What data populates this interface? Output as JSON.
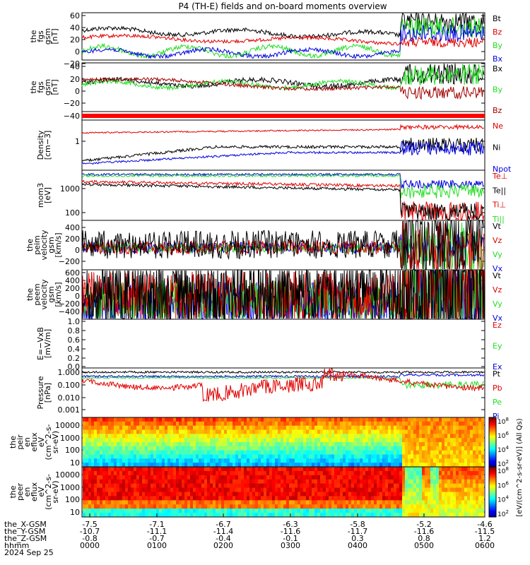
{
  "title": "P4 (TH-E) fields and on-board moments overview",
  "colors": {
    "black": "#000000",
    "red": "#e00000",
    "green": "#22dd22",
    "blue": "#0000e0",
    "darkred": "#a00000",
    "brightred": "#ff0000"
  },
  "footer": {
    "rows": [
      {
        "label": "the_X-GSM",
        "values": [
          "-7.5",
          "-7.1",
          "-6.7",
          "-6.3",
          "-5.8",
          "-5.2",
          "-4.6"
        ]
      },
      {
        "label": "the_Y-GSM",
        "values": [
          "-10.7",
          "-11.1",
          "-11.4",
          "-11.6",
          "-11.7",
          "-11.6",
          "-11.5"
        ]
      },
      {
        "label": "the_Z-GSM",
        "values": [
          "-0.8",
          "-0.7",
          "-0.4",
          "-0.1",
          "0.3",
          "0.8",
          "1.2"
        ]
      },
      {
        "label": "hhmm",
        "values": [
          "0000",
          "0100",
          "0200",
          "0300",
          "0400",
          "0500",
          "0600"
        ]
      }
    ],
    "date": "2024 Sep 25"
  },
  "colorbar": {
    "label1": "[eV/(cm^2-s-sr-eV)] (All Qs)",
    "label2": "[eV/(cm^2-s-sr-eV)] (All Qs)",
    "ticks1": [
      "10^8",
      "10^6",
      "10^4",
      "10^2"
    ],
    "ticks2": [
      "10^8",
      "10^6",
      "10^4",
      "10^2"
    ]
  },
  "chart_data": [
    {
      "type": "line",
      "ylabel": [
        "the",
        "fgs",
        "gsm",
        "[nT]"
      ],
      "ylim": [
        -20,
        60
      ],
      "yticks": [
        "60",
        "40",
        "20",
        "0",
        "−20"
      ],
      "legend": [
        {
          "name": "Bt",
          "color": "black"
        },
        {
          "name": "Bz",
          "color": "red"
        },
        {
          "name": "By",
          "color": "green"
        },
        {
          "name": "Bx",
          "color": "blue"
        }
      ]
    },
    {
      "type": "line",
      "ylabel": [
        "the",
        "fgs",
        "gsm",
        "[nT]"
      ],
      "ylim": [
        -50,
        40
      ],
      "yticks": [
        "40",
        "20",
        "0",
        "−20",
        "−40"
      ],
      "legend": [
        {
          "name": "Bx",
          "color": "black"
        },
        {
          "name": "By",
          "color": "green"
        },
        {
          "name": "Bz",
          "color": "darkred"
        }
      ]
    },
    {
      "type": "bar",
      "ylabel": [],
      "ylim": [
        0,
        1
      ],
      "yticks": [],
      "legend": []
    },
    {
      "type": "line",
      "ylabel": [
        "Density",
        "[cm−3]"
      ],
      "ylim": [
        0.1,
        5
      ],
      "yticks": [
        "1"
      ],
      "legend": [
        {
          "name": "Ne",
          "color": "red"
        },
        {
          "name": "Ni",
          "color": "black"
        },
        {
          "name": "Npot",
          "color": "blue"
        }
      ]
    },
    {
      "type": "line",
      "ylabel": [
        "mom3",
        "[eV]"
      ],
      "ylim": [
        80,
        8000
      ],
      "yticks": [
        "1000",
        "100"
      ],
      "legend": [
        {
          "name": "Te⊥",
          "color": "red"
        },
        {
          "name": "Te||",
          "color": "black"
        },
        {
          "name": "Ti⊥",
          "color": "red"
        },
        {
          "name": "Ti||",
          "color": "green"
        }
      ]
    },
    {
      "type": "line",
      "ylabel": [
        "the",
        "peim",
        "velocity",
        "gsm",
        "[km/s]"
      ],
      "ylim": [
        -400,
        500
      ],
      "yticks": [
        "400",
        "200",
        "0",
        "−200"
      ],
      "legend": [
        {
          "name": "Vt",
          "color": "black"
        },
        {
          "name": "Vz",
          "color": "red"
        },
        {
          "name": "Vy",
          "color": "green"
        },
        {
          "name": "Vx",
          "color": "blue"
        }
      ]
    },
    {
      "type": "line",
      "ylabel": [
        "the",
        "peem",
        "velocity",
        "gsm",
        "[km/s]"
      ],
      "ylim": [
        -500,
        700
      ],
      "yticks": [
        "600",
        "400",
        "200",
        "0",
        "−200",
        "−400"
      ],
      "legend": [
        {
          "name": "Vt",
          "color": "black"
        },
        {
          "name": "Vz",
          "color": "red"
        },
        {
          "name": "Vy",
          "color": "green"
        },
        {
          "name": "Vx",
          "color": "blue"
        }
      ]
    },
    {
      "type": "line",
      "ylabel": [
        "E=−VxB",
        "[mV/m]"
      ],
      "ylim": [
        0,
        1
      ],
      "yticks": [
        "1.0",
        "0.8",
        "0.6",
        "0.4",
        "0.2",
        "0.0"
      ],
      "legend": [
        {
          "name": "Ez",
          "color": "red"
        },
        {
          "name": "Ey",
          "color": "green"
        },
        {
          "name": "Ex",
          "color": "blue"
        }
      ]
    },
    {
      "type": "line",
      "ylabel": [
        "Pressure",
        "[nPa]"
      ],
      "ylim": [
        0.0001,
        2
      ],
      "yticks": [
        "1.000",
        "0.100",
        "0.010",
        "0.001"
      ],
      "legend": [
        {
          "name": "Pt",
          "color": "black"
        },
        {
          "name": "Pb",
          "color": "red"
        },
        {
          "name": "Pe",
          "color": "green"
        },
        {
          "name": "Pi",
          "color": "blue"
        }
      ]
    },
    {
      "type": "heatmap",
      "ylabel": [
        "the",
        "peir",
        "en",
        "eflux",
        "eV",
        "(cm^2-s-",
        "sr-eV)"
      ],
      "yticks": [
        "10000",
        "1000",
        "100",
        "10"
      ]
    },
    {
      "type": "heatmap",
      "ylabel": [
        "the",
        "peer",
        "en",
        "eflux",
        "eV",
        "(cm^2-s-",
        "sr-eV)"
      ],
      "yticks": [
        "10000",
        "1000",
        "100",
        "10"
      ]
    }
  ]
}
